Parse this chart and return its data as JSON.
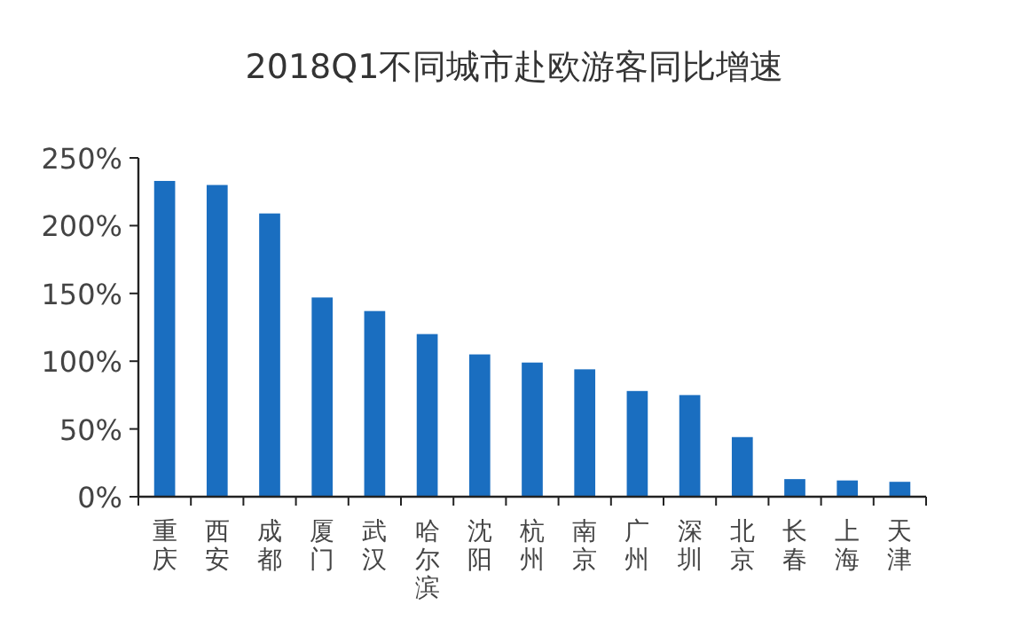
{
  "chart_data": {
    "type": "bar",
    "title": "2018Q1不同城市赴欧游客同比增速",
    "categories": [
      "重庆",
      "西安",
      "成都",
      "厦门",
      "武汉",
      "哈尔滨",
      "沈阳",
      "杭州",
      "南京",
      "广州",
      "深圳",
      "北京",
      "长春",
      "上海",
      "天津"
    ],
    "values": [
      233,
      230,
      209,
      147,
      137,
      120,
      105,
      99,
      94,
      78,
      75,
      44,
      13,
      12,
      11
    ],
    "color": "#1a6ec0",
    "ylim": [
      0,
      250
    ],
    "yticks": [
      {
        "value": 0,
        "label": "0%"
      },
      {
        "value": 50,
        "label": "50%"
      },
      {
        "value": 100,
        "label": "100%"
      },
      {
        "value": 150,
        "label": "150%"
      },
      {
        "value": 200,
        "label": "200%"
      },
      {
        "value": 250,
        "label": "250%"
      }
    ],
    "grid": false
  }
}
